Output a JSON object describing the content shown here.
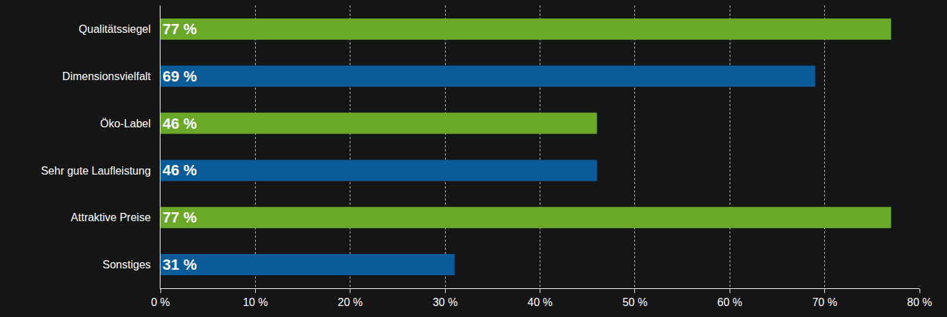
{
  "chart_data": {
    "type": "bar",
    "orientation": "horizontal",
    "categories": [
      "Qualitätssiegel",
      "Dimensionsvielfalt",
      "Öko-Label",
      "Sehr gute Laufleistung",
      "Attraktive Preise",
      "Sonstiges"
    ],
    "values": [
      77,
      69,
      46,
      46,
      77,
      31
    ],
    "value_labels": [
      "77 %",
      "69 %",
      "46 %",
      "46 %",
      "77 %",
      "31 %"
    ],
    "colors": [
      "#6aa82a",
      "#0a5c99",
      "#6aa82a",
      "#0a5c99",
      "#6aa82a",
      "#0a5c99"
    ],
    "data_labels": true,
    "xlim": [
      0,
      80
    ],
    "xticks": [
      {
        "value": 0,
        "label": "0 %"
      },
      {
        "value": 10,
        "label": "10 %"
      },
      {
        "value": 20,
        "label": "20 %"
      },
      {
        "value": 30,
        "label": "30 %"
      },
      {
        "value": 40,
        "label": "40 %"
      },
      {
        "value": 50,
        "label": "50 %"
      },
      {
        "value": 60,
        "label": "60 %"
      },
      {
        "value": 70,
        "label": "70 %"
      },
      {
        "value": 80,
        "label": "80 %"
      }
    ],
    "grid": true
  }
}
